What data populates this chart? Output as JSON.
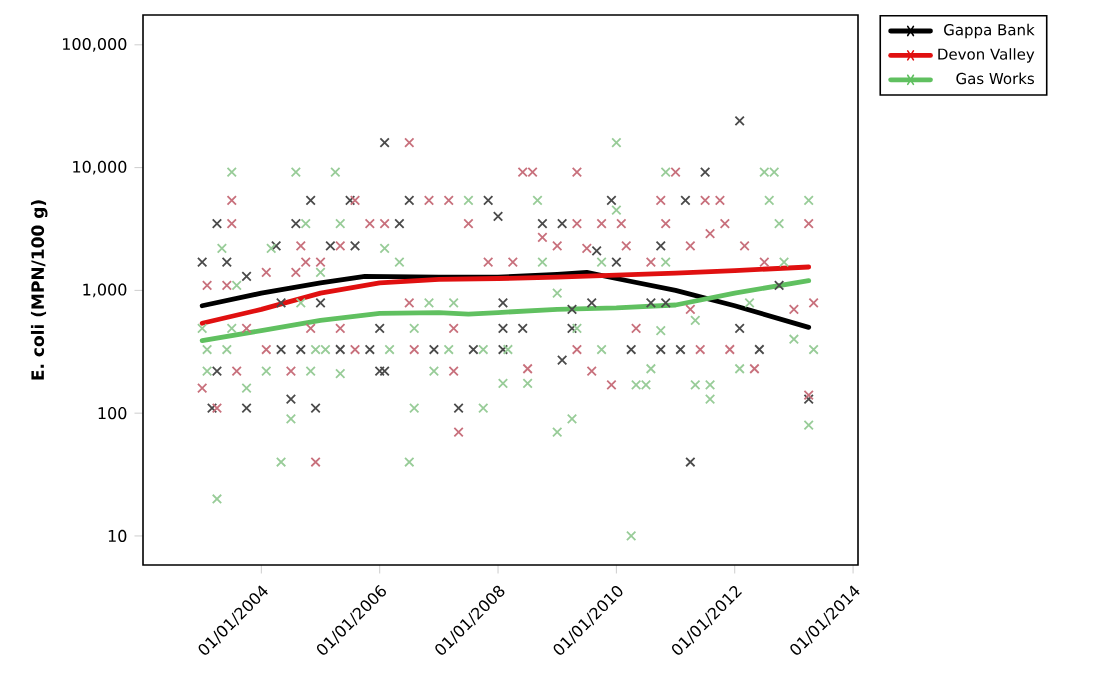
{
  "chart_data": {
    "type": "scatter",
    "ylabel": "E. coli (MPN/100 g)",
    "log": "y",
    "legend": "top right",
    "marker": "cross",
    "line_style": "solid",
    "xlim": [
      "2002-01-01",
      "2014-02-01"
    ],
    "xticks": [
      {
        "value": "2004-01-01",
        "label": "01/01/2004"
      },
      {
        "value": "2006-01-01",
        "label": "01/01/2006"
      },
      {
        "value": "2008-01-01",
        "label": "01/01/2008"
      },
      {
        "value": "2010-01-01",
        "label": "01/01/2010"
      },
      {
        "value": "2012-01-01",
        "label": "01/01/2012"
      },
      {
        "value": "2014-01-01",
        "label": "01/01/2014"
      }
    ],
    "ylim": [
      5.8,
      175000
    ],
    "yticks": [
      10,
      100,
      {
        "value": 1000,
        "label": "1,000"
      },
      {
        "value": 10000,
        "label": "10,000"
      },
      {
        "value": 100000,
        "label": "100,000"
      }
    ],
    "series": [
      {
        "color": "#4a4a4a",
        "x": [
          "2003-01",
          "2003-06",
          "2003-04",
          "2004-11",
          "2005-07",
          "2004-08",
          "2004-04",
          "2005-03",
          "2005-08",
          "2003-10",
          "2006-02",
          "2004-05",
          "2004-09",
          "2005-05",
          "2005-11",
          "2003-04",
          "2006-01",
          "2003-03",
          "2003-10",
          "2004-07",
          "2004-12",
          "2005-01",
          "2004-05",
          "2006-07",
          "2007-11",
          "2008-01",
          "2006-05",
          "2008-10",
          "2009-02",
          "2009-12",
          "2009-09",
          "2010-01",
          "2008-02",
          "2009-04",
          "2009-08",
          "2008-02",
          "2008-06",
          "2009-04",
          "2006-01",
          "2006-12",
          "2007-08",
          "2008-02",
          "2009-02",
          "2007-05",
          "2006-02",
          "2012-02",
          "2011-07",
          "2011-03",
          "2010-10",
          "2012-10",
          "2010-08",
          "2010-11",
          "2012-02",
          "2010-04",
          "2010-10",
          "2011-02",
          "2012-06",
          "2013-04",
          "2011-04"
        ],
        "values": [
          1700,
          1700,
          3500,
          5400,
          5400,
          3500,
          2300,
          2300,
          2300,
          1300,
          16000,
          330,
          330,
          330,
          330,
          220,
          220,
          110,
          110,
          130,
          110,
          790,
          790,
          5400,
          5400,
          4000,
          3500,
          3500,
          3500,
          5400,
          2100,
          1700,
          790,
          700,
          790,
          490,
          490,
          490,
          490,
          330,
          330,
          330,
          270,
          110,
          220,
          24000,
          9200,
          5400,
          2300,
          1100,
          790,
          790,
          490,
          330,
          330,
          330,
          330,
          130,
          40
        ]
      },
      {
        "color": "#c8707c",
        "x": [
          "2003-07",
          "2003-07",
          "2003-02",
          "2003-06",
          "2004-09",
          "2004-10",
          "2005-01",
          "2004-08",
          "2004-02",
          "2005-08",
          "2005-11",
          "2005-05",
          "2005-05",
          "2004-11",
          "2004-02",
          "2005-08",
          "2004-07",
          "2003-08",
          "2003-01",
          "2003-04",
          "2004-12",
          "2003-10",
          "2006-07",
          "2008-06",
          "2008-08",
          "2009-05",
          "2006-11",
          "2007-03",
          "2006-02",
          "2007-07",
          "2009-05",
          "2009-10",
          "2010-02",
          "2008-10",
          "2009-01",
          "2009-07",
          "2007-11",
          "2008-04",
          "2006-07",
          "2007-04",
          "2009-05",
          "2008-07",
          "2009-08",
          "2009-12",
          "2007-05",
          "2006-08",
          "2007-04",
          "2011-01",
          "2010-10",
          "2011-07",
          "2011-10",
          "2010-11",
          "2011-11",
          "2011-08",
          "2011-04",
          "2012-03",
          "2010-08",
          "2012-07",
          "2013-05",
          "2013-01",
          "2010-05",
          "2011-04",
          "2011-06",
          "2011-12",
          "2012-05",
          "2013-04",
          "2013-04",
          "2010-03"
        ],
        "values": [
          5400,
          3500,
          1100,
          1100,
          2300,
          1700,
          1700,
          1400,
          1400,
          5400,
          3500,
          2300,
          490,
          490,
          330,
          330,
          220,
          220,
          160,
          110,
          40,
          490,
          16000,
          9200,
          9200,
          9200,
          5400,
          5400,
          3500,
          3500,
          3500,
          3500,
          3500,
          2700,
          2300,
          2200,
          1700,
          1700,
          790,
          490,
          330,
          230,
          220,
          170,
          70,
          330,
          220,
          9200,
          5400,
          5400,
          5400,
          3500,
          3500,
          2900,
          2300,
          2300,
          1700,
          1700,
          790,
          700,
          490,
          700,
          330,
          330,
          230,
          3500,
          140,
          2300
        ]
      },
      {
        "color": "#98cc98",
        "x": [
          "2003-07",
          "2004-08",
          "2005-04",
          "2003-05",
          "2004-03",
          "2004-10",
          "2005-05",
          "2003-08",
          "2005-01",
          "2004-09",
          "2003-02",
          "2003-06",
          "2004-12",
          "2005-02",
          "2004-02",
          "2004-11",
          "2005-05",
          "2003-10",
          "2004-07",
          "2004-05",
          "2003-02",
          "2003-01",
          "2003-07",
          "2006-02",
          "2003-04",
          "2010-01",
          "2007-07",
          "2008-09",
          "2010-01",
          "2006-05",
          "2008-10",
          "2009-10",
          "2009-01",
          "2006-11",
          "2007-04",
          "2006-08",
          "2009-05",
          "2006-03",
          "2007-03",
          "2007-10",
          "2008-03",
          "2009-10",
          "2006-12",
          "2008-02",
          "2008-07",
          "2006-08",
          "2007-10",
          "2009-04",
          "2009-01",
          "2006-07",
          "2010-11",
          "2012-07",
          "2012-09",
          "2012-08",
          "2013-04",
          "2012-10",
          "2010-11",
          "2012-11",
          "2012-04",
          "2010-10",
          "2011-05",
          "2013-01",
          "2013-05",
          "2010-08",
          "2012-02",
          "2010-05",
          "2010-07",
          "2011-05",
          "2011-08",
          "2011-08",
          "2013-04",
          "2010-04"
        ],
        "values": [
          9200,
          9200,
          9200,
          2200,
          2200,
          3500,
          3500,
          1100,
          1400,
          790,
          330,
          330,
          330,
          330,
          220,
          220,
          210,
          160,
          90,
          40,
          220,
          490,
          490,
          2200,
          20,
          16000,
          5400,
          5400,
          4500,
          1700,
          1700,
          1700,
          950,
          790,
          790,
          490,
          490,
          330,
          330,
          330,
          330,
          330,
          220,
          175,
          175,
          110,
          110,
          90,
          70,
          40,
          9200,
          9200,
          9200,
          5400,
          5400,
          3500,
          1700,
          1700,
          790,
          470,
          570,
          400,
          330,
          230,
          230,
          170,
          170,
          170,
          170,
          130,
          80,
          10
        ]
      },
      {
        "type": "line",
        "marker": "none",
        "name": "Gappa Bank",
        "color": "#000000",
        "x": [
          "2003-01",
          "2004-01",
          "2005-01",
          "2005-10",
          "2007-01",
          "2008-01",
          "2009-01",
          "2009-07",
          "2010-01",
          "2011-01",
          "2012-01",
          "2013-04"
        ],
        "values": [
          750,
          950,
          1150,
          1300,
          1280,
          1280,
          1350,
          1400,
          1250,
          1000,
          750,
          500
        ]
      },
      {
        "type": "line",
        "marker": "none",
        "name": "Devon Valley",
        "color": "#e01010",
        "x": [
          "2003-01",
          "2004-01",
          "2005-01",
          "2006-01",
          "2007-01",
          "2008-01",
          "2009-01",
          "2010-01",
          "2011-01",
          "2012-01",
          "2013-04"
        ],
        "values": [
          540,
          700,
          950,
          1150,
          1230,
          1250,
          1280,
          1330,
          1380,
          1450,
          1550
        ]
      },
      {
        "type": "line",
        "marker": "none",
        "name": "Gas Works",
        "color": "#60c060",
        "x": [
          "2003-01",
          "2004-01",
          "2005-01",
          "2006-01",
          "2007-01",
          "2007-07",
          "2008-01",
          "2009-01",
          "2010-01",
          "2011-01",
          "2012-01",
          "2013-04"
        ],
        "values": [
          390,
          470,
          570,
          650,
          660,
          640,
          660,
          700,
          720,
          760,
          950,
          1200
        ]
      }
    ]
  }
}
